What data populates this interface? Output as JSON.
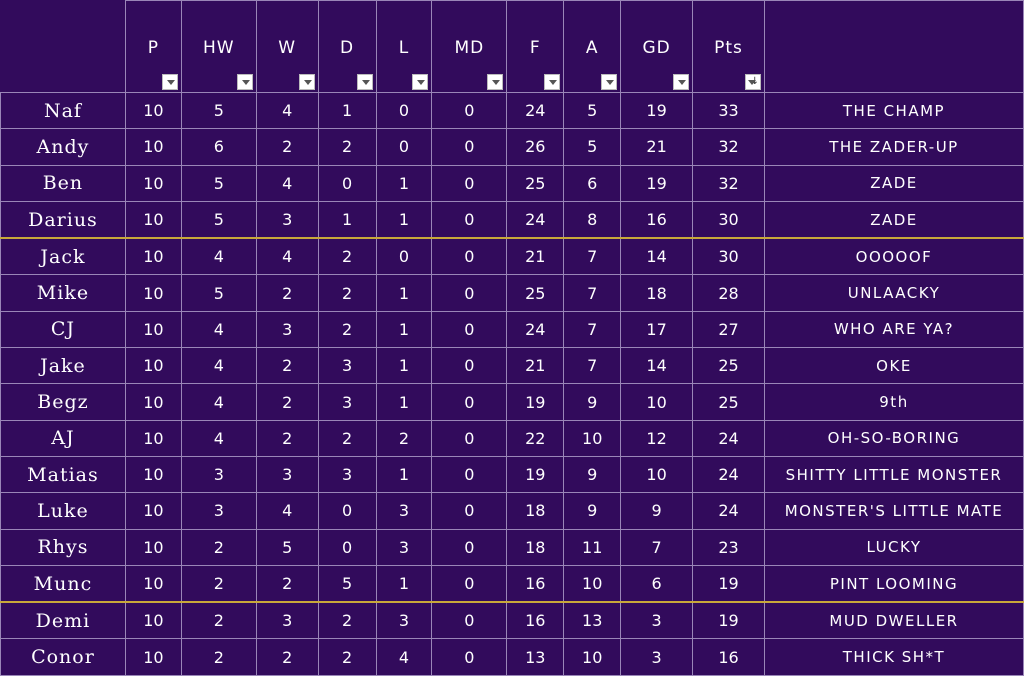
{
  "headers": [
    "P",
    "HW",
    "W",
    "D",
    "L",
    "MD",
    "F",
    "A",
    "GD",
    "Pts"
  ],
  "rows": [
    {
      "name": "Naf",
      "P": "10",
      "HW": "5",
      "W": "4",
      "D": "1",
      "L": "0",
      "MD": "0",
      "F": "24",
      "A": "5",
      "GD": "19",
      "Pts": "33",
      "nickname": "THE CHAMP"
    },
    {
      "name": "Andy",
      "P": "10",
      "HW": "6",
      "W": "2",
      "D": "2",
      "L": "0",
      "MD": "0",
      "F": "26",
      "A": "5",
      "GD": "21",
      "Pts": "32",
      "nickname": "THE ZADER-UP"
    },
    {
      "name": "Ben",
      "P": "10",
      "HW": "5",
      "W": "4",
      "D": "0",
      "L": "1",
      "MD": "0",
      "F": "25",
      "A": "6",
      "GD": "19",
      "Pts": "32",
      "nickname": "ZADE"
    },
    {
      "name": "Darius",
      "P": "10",
      "HW": "5",
      "W": "3",
      "D": "1",
      "L": "1",
      "MD": "0",
      "F": "24",
      "A": "8",
      "GD": "16",
      "Pts": "30",
      "nickname": "ZADE"
    },
    {
      "name": "Jack",
      "P": "10",
      "HW": "4",
      "W": "4",
      "D": "2",
      "L": "0",
      "MD": "0",
      "F": "21",
      "A": "7",
      "GD": "14",
      "Pts": "30",
      "nickname": "OOOOOF"
    },
    {
      "name": "Mike",
      "P": "10",
      "HW": "5",
      "W": "2",
      "D": "2",
      "L": "1",
      "MD": "0",
      "F": "25",
      "A": "7",
      "GD": "18",
      "Pts": "28",
      "nickname": "UNLAACKY"
    },
    {
      "name": "CJ",
      "P": "10",
      "HW": "4",
      "W": "3",
      "D": "2",
      "L": "1",
      "MD": "0",
      "F": "24",
      "A": "7",
      "GD": "17",
      "Pts": "27",
      "nickname": "WHO ARE YA?"
    },
    {
      "name": "Jake",
      "P": "10",
      "HW": "4",
      "W": "2",
      "D": "3",
      "L": "1",
      "MD": "0",
      "F": "21",
      "A": "7",
      "GD": "14",
      "Pts": "25",
      "nickname": "OKE"
    },
    {
      "name": "Begz",
      "P": "10",
      "HW": "4",
      "W": "2",
      "D": "3",
      "L": "1",
      "MD": "0",
      "F": "19",
      "A": "9",
      "GD": "10",
      "Pts": "25",
      "nickname": "9th"
    },
    {
      "name": "AJ",
      "P": "10",
      "HW": "4",
      "W": "2",
      "D": "2",
      "L": "2",
      "MD": "0",
      "F": "22",
      "A": "10",
      "GD": "12",
      "Pts": "24",
      "nickname": "OH-SO-BORING"
    },
    {
      "name": "Matias",
      "P": "10",
      "HW": "3",
      "W": "3",
      "D": "3",
      "L": "1",
      "MD": "0",
      "F": "19",
      "A": "9",
      "GD": "10",
      "Pts": "24",
      "nickname": "SHITTY LITTLE MONSTER"
    },
    {
      "name": "Luke",
      "P": "10",
      "HW": "3",
      "W": "4",
      "D": "0",
      "L": "3",
      "MD": "0",
      "F": "18",
      "A": "9",
      "GD": "9",
      "Pts": "24",
      "nickname": "MONSTER'S LITTLE MATE"
    },
    {
      "name": "Rhys",
      "P": "10",
      "HW": "2",
      "W": "5",
      "D": "0",
      "L": "3",
      "MD": "0",
      "F": "18",
      "A": "11",
      "GD": "7",
      "Pts": "23",
      "nickname": "LUCKY"
    },
    {
      "name": "Munc",
      "P": "10",
      "HW": "2",
      "W": "2",
      "D": "5",
      "L": "1",
      "MD": "0",
      "F": "16",
      "A": "10",
      "GD": "6",
      "Pts": "19",
      "nickname": "PINT LOOMING"
    },
    {
      "name": "Demi",
      "P": "10",
      "HW": "2",
      "W": "3",
      "D": "2",
      "L": "3",
      "MD": "0",
      "F": "16",
      "A": "13",
      "GD": "3",
      "Pts": "19",
      "nickname": "MUD DWELLER"
    },
    {
      "name": "Conor",
      "P": "10",
      "HW": "2",
      "W": "2",
      "D": "2",
      "L": "4",
      "MD": "0",
      "F": "13",
      "A": "10",
      "GD": "3",
      "Pts": "16",
      "nickname": "THICK SH*T"
    }
  ],
  "zone_breaks_after_rows": [
    3,
    13
  ],
  "sort_indicator": "↓"
}
